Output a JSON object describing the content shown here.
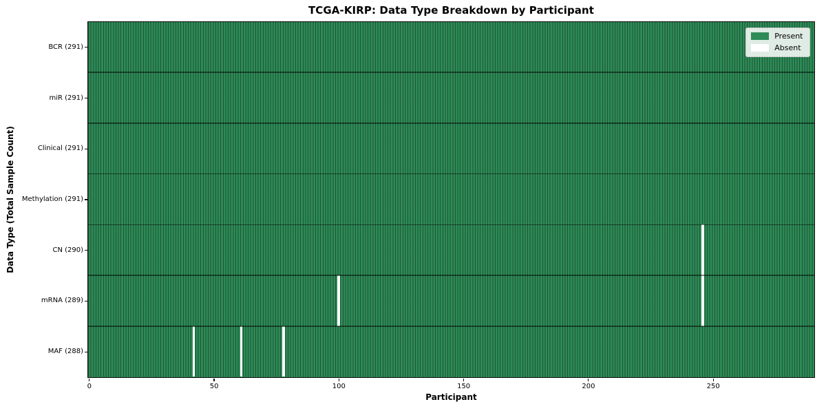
{
  "chart_data": {
    "type": "heatmap",
    "title": "TCGA-KIRP: Data Type Breakdown by Participant",
    "xlabel": "Participant",
    "ylabel": "Data Type (Total Sample Count)",
    "n_participants": 291,
    "x_ticks": [
      "0",
      "50",
      "100",
      "150",
      "200",
      "250"
    ],
    "x_tick_values": [
      0,
      50,
      100,
      150,
      200,
      250
    ],
    "rows": [
      {
        "label": "BCR (291)",
        "data_type": "BCR",
        "present_count": 291,
        "absent_participants": []
      },
      {
        "label": "miR (291)",
        "data_type": "miR",
        "present_count": 291,
        "absent_participants": []
      },
      {
        "label": "Clinical (291)",
        "data_type": "Clinical",
        "present_count": 291,
        "absent_participants": []
      },
      {
        "label": "Methylation (291)",
        "data_type": "Methylation",
        "present_count": 291,
        "absent_participants": []
      },
      {
        "label": "CN (290)",
        "data_type": "CN",
        "present_count": 290,
        "absent_participants": [
          246
        ]
      },
      {
        "label": "mRNA (289)",
        "data_type": "mRNA",
        "present_count": 289,
        "absent_participants": [
          100,
          246
        ]
      },
      {
        "label": "MAF (288)",
        "data_type": "MAF",
        "present_count": 288,
        "absent_participants": [
          42,
          61,
          78
        ]
      }
    ],
    "legend": {
      "position": "upper right",
      "items": [
        {
          "label": "Present",
          "color": "#2e8b57"
        },
        {
          "label": "Absent",
          "color": "#ffffff"
        }
      ]
    },
    "colors": {
      "present": "#2e8b57",
      "absent": "#ffffff",
      "background": "#ffffff",
      "text": "#000000"
    }
  }
}
